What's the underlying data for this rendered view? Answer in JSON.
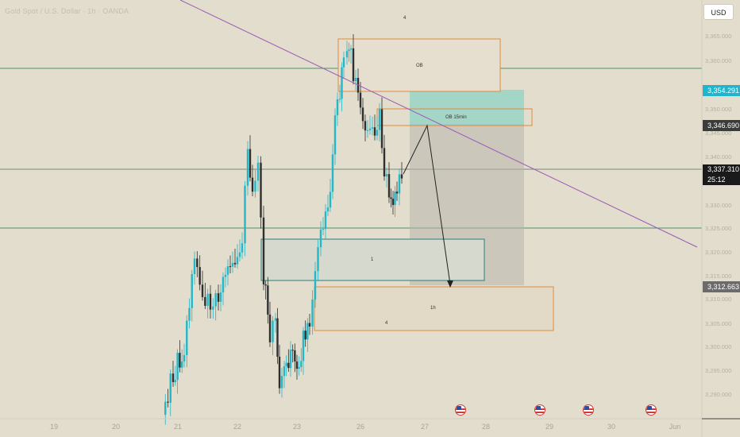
{
  "header": {
    "title": "Gold Spot / U.S. Dollar · 1h · OANDA",
    "currency_button": "USD"
  },
  "price_axis": {
    "ticks": [
      "3,365.000",
      "3,360.000",
      "3,350.000",
      "3,345.000",
      "3,340.000",
      "3,330.000",
      "3,325.000",
      "3,320.000",
      "3,315.000",
      "3,310.000",
      "3,305.000",
      "3,300.000",
      "3,295.000",
      "3,290.000"
    ],
    "range": [
      3286,
      3367
    ]
  },
  "price_tags": {
    "target_top": "3,354.291",
    "ob_level": "3,346.690",
    "current_price": "3,337.310",
    "countdown": "25:12",
    "target_bottom": "3,312.663"
  },
  "time_axis": {
    "labels": [
      "19",
      "20",
      "21",
      "22",
      "23",
      "26",
      "27",
      "28",
      "29",
      "30",
      "Jun"
    ]
  },
  "annotations": {
    "ob_label": "OB",
    "ob15_label": "OB 15min",
    "zone1_label": "1",
    "zone1h_label": "1h",
    "count_top": "4",
    "count_bottom": "4"
  },
  "colors": {
    "background": "#e2ddcc",
    "bull_candle": "#22b7c9",
    "bear_candle": "#2f2f2f",
    "horizontal_lines": "#1e7a4a",
    "trendline": "#9b5ab8",
    "orange_box": "#e08a3c",
    "teal_box": "#2b7f7a",
    "target_tag": "#1fb5cc",
    "current_tag": "#1a1a1a",
    "ob_tag": "#3b3b3b",
    "bottom_tag": "#6b6b6b"
  },
  "event_icons": [
    "us-flag-icon",
    "us-flag-icon",
    "us-flag-icon",
    "us-flag-icon"
  ]
}
